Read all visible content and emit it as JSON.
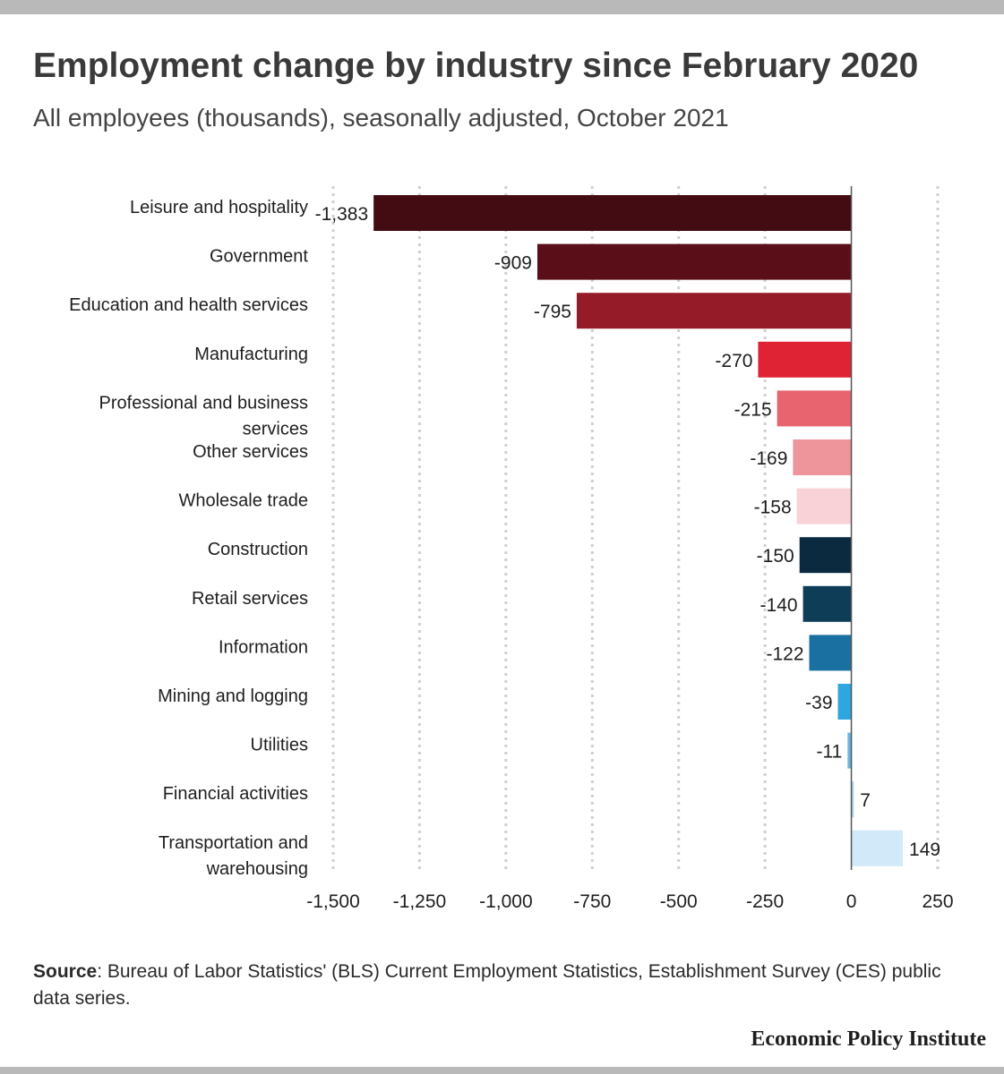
{
  "header": {
    "title": "Employment change by industry since February 2020",
    "subtitle": "All employees (thousands), seasonally adjusted, October 2021"
  },
  "chart_data": {
    "type": "bar",
    "orientation": "horizontal",
    "title": "Employment change by industry since February 2020",
    "subtitle": "All employees (thousands), seasonally adjusted, October 2021",
    "xlim": [
      -1500,
      250
    ],
    "xticks": [
      -1500,
      -1250,
      -1000,
      -750,
      -500,
      -250,
      0,
      250
    ],
    "xtick_labels": [
      "-1,500",
      "-1,250",
      "-1,000",
      "-750",
      "-500",
      "-250",
      "0",
      "250"
    ],
    "grid": "vertical dotted",
    "categories": [
      [
        "Leisure and hospitality"
      ],
      [
        "Government"
      ],
      [
        "Education and health services"
      ],
      [
        "Manufacturing"
      ],
      [
        "Professional and business",
        "services"
      ],
      [
        "Other services"
      ],
      [
        "Wholesale trade"
      ],
      [
        "Construction"
      ],
      [
        "Retail services"
      ],
      [
        "Information"
      ],
      [
        "Mining and logging"
      ],
      [
        "Utilities"
      ],
      [
        "Financial activities"
      ],
      [
        "Transportation and",
        "warehousing"
      ]
    ],
    "values": [
      -1383,
      -909,
      -795,
      -270,
      -215,
      -169,
      -158,
      -150,
      -140,
      -122,
      -39,
      -11,
      7,
      149
    ],
    "value_labels": [
      "-1,383",
      "-909",
      "-795",
      "-270",
      "-215",
      "-169",
      "-158",
      "-150",
      "-140",
      "-122",
      "-39",
      "-11",
      "7",
      "149"
    ],
    "colors": [
      "#430b12",
      "#5a0e18",
      "#961b28",
      "#e02235",
      "#e8646f",
      "#ee959c",
      "#f8d2d6",
      "#0b2a3f",
      "#0e3d57",
      "#1a70a0",
      "#2ea6e0",
      "#6db6e2",
      "#a8d6f1",
      "#d1e9f8"
    ]
  },
  "footer": {
    "source_label": "Source",
    "source_text": ": Bureau of Labor Statistics' (BLS) Current Employment Statistics, Establishment Survey (CES) public data series.",
    "brand": "Economic Policy Institute"
  }
}
